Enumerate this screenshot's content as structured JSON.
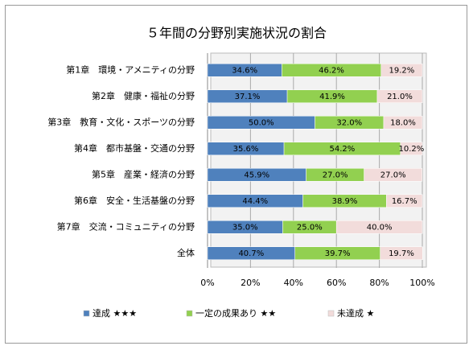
{
  "chart_data": {
    "type": "stacked_bar_horizontal",
    "title": "５年間の分野別実施状況の割合",
    "categories": [
      "第1章　環境・アメニティの分野",
      "第2章　健康・福祉の分野",
      "第3章　教育・文化・スポーツの分野",
      "第4章　都市基盤・交通の分野",
      "第5章　産業・経済の分野",
      "第6章　安全・生活基盤の分野",
      "第7章　交流・コミュニティの分野",
      "全体"
    ],
    "series": [
      {
        "name": "達成 ★★★",
        "color": "#4f81bd",
        "values": [
          34.6,
          37.1,
          50.0,
          35.6,
          45.9,
          44.4,
          35.0,
          40.7
        ],
        "value_labels": [
          "34.6%",
          "37.1%",
          "50.0%",
          "35.6%",
          "45.9%",
          "44.4%",
          "35.0%",
          "40.7%"
        ]
      },
      {
        "name": "一定の成果あり ★★",
        "color": "#92d050",
        "values": [
          46.2,
          41.9,
          32.0,
          54.2,
          27.0,
          38.9,
          25.0,
          39.7
        ],
        "value_labels": [
          "46.2%",
          "41.9%",
          "32.0%",
          "54.2%",
          "27.0%",
          "38.9%",
          "25.0%",
          "39.7%"
        ]
      },
      {
        "name": "未達成 ★",
        "color": "#f2dcdb",
        "values": [
          19.2,
          21.0,
          18.0,
          10.2,
          27.0,
          16.7,
          40.0,
          19.7
        ],
        "value_labels": [
          "19.2%",
          "21.0%",
          "18.0%",
          "10.2%",
          "27.0%",
          "16.7%",
          "40.0%",
          "19.7%"
        ]
      }
    ],
    "xlim": [
      0,
      100
    ],
    "xticks": [
      {
        "value": 0,
        "label": "0%"
      },
      {
        "value": 20,
        "label": "20%"
      },
      {
        "value": 40,
        "label": "40%"
      },
      {
        "value": 60,
        "label": "60%"
      },
      {
        "value": 80,
        "label": "80%"
      },
      {
        "value": 100,
        "label": "100%"
      }
    ],
    "grid": true
  }
}
